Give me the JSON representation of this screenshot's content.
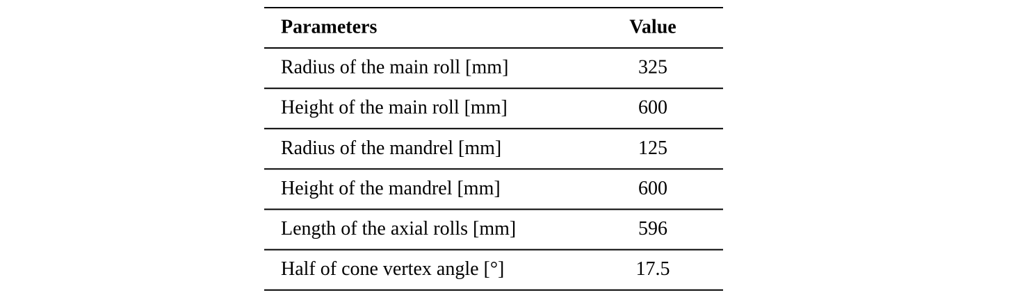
{
  "table": {
    "header": [
      "Parameters",
      "Value"
    ],
    "rows": [
      [
        "Radius of the main roll [mm]",
        325
      ],
      [
        "Height of the main roll [mm]",
        600
      ],
      [
        "Radius of the mandrel [mm]",
        125
      ],
      [
        "Height of the mandrel [mm]",
        600
      ],
      [
        "Length of the axial rolls [mm]",
        596
      ],
      [
        "Half of cone vertex angle [°]",
        17.5
      ]
    ]
  }
}
